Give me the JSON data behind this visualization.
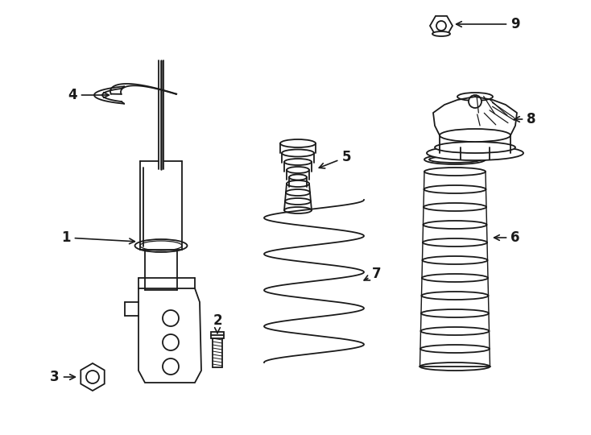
{
  "bg_color": "#ffffff",
  "line_color": "#1a1a1a",
  "lw": 1.3,
  "fig_w": 7.34,
  "fig_h": 5.4,
  "font_size": 12
}
